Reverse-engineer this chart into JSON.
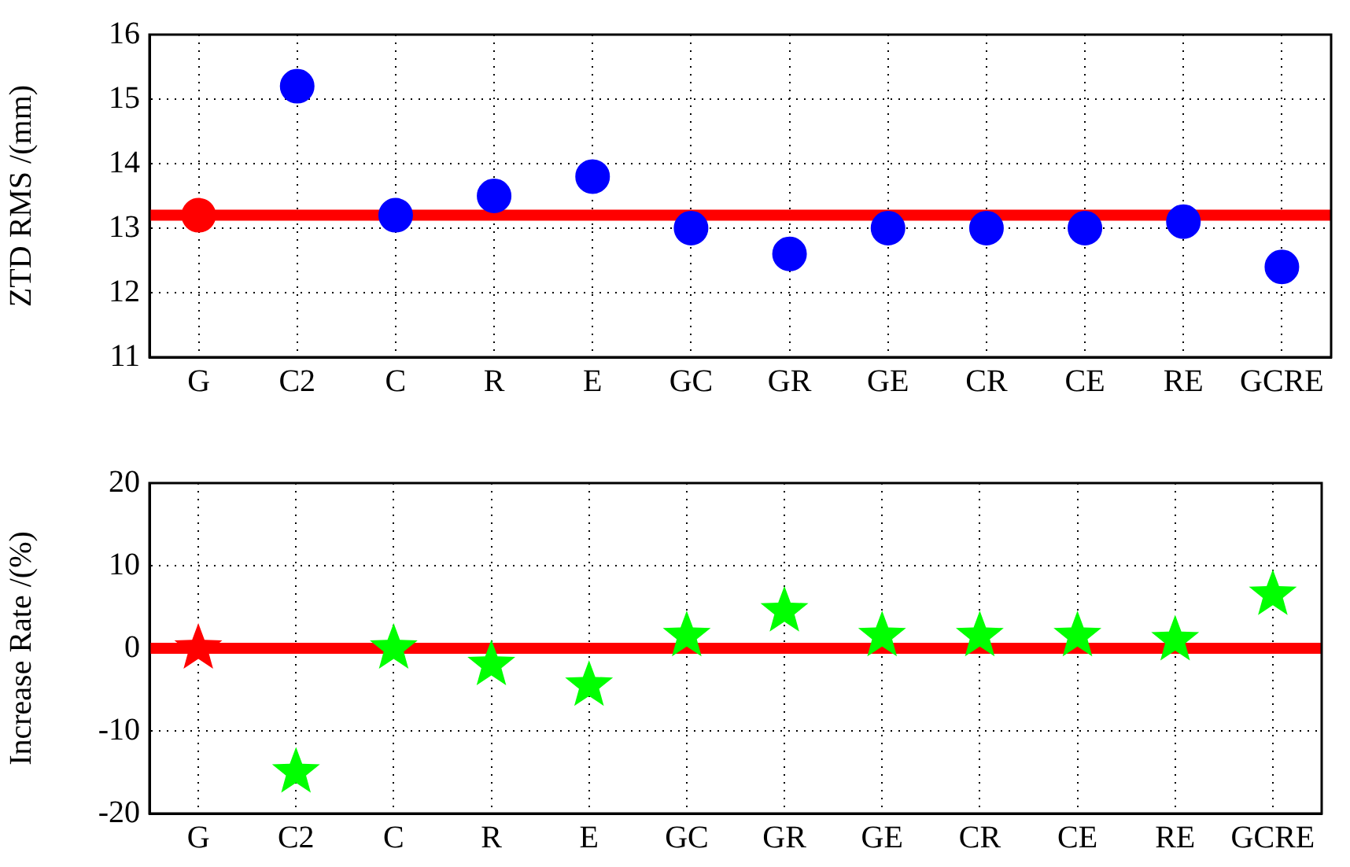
{
  "chart_data": [
    {
      "type": "scatter",
      "categories": [
        "G",
        "C2",
        "C",
        "R",
        "E",
        "GC",
        "GR",
        "GE",
        "CR",
        "CE",
        "RE",
        "GCRE"
      ],
      "values": [
        13.2,
        15.2,
        13.2,
        13.5,
        13.8,
        13.0,
        12.6,
        13.0,
        13.0,
        13.0,
        13.1,
        12.4
      ],
      "colors": [
        "#ff0000",
        "#0000ff",
        "#0000ff",
        "#0000ff",
        "#0000ff",
        "#0000ff",
        "#0000ff",
        "#0000ff",
        "#0000ff",
        "#0000ff",
        "#0000ff",
        "#0000ff"
      ],
      "ylabel": "ZTD RMS /(mm)",
      "ylim": [
        11,
        16
      ],
      "yticks": [
        11,
        12,
        13,
        14,
        15,
        16
      ],
      "grid": true,
      "marker": "circle",
      "ref_lines": [
        {
          "axis": "y",
          "value": 13.2,
          "color": "#ff0000"
        }
      ]
    },
    {
      "type": "scatter",
      "categories": [
        "G",
        "C2",
        "C",
        "R",
        "E",
        "GC",
        "GR",
        "GE",
        "CR",
        "CE",
        "RE",
        "GCRE"
      ],
      "values": [
        0,
        -15,
        0,
        -2,
        -4.5,
        1.5,
        4.5,
        1.5,
        1.5,
        1.5,
        1,
        6.5
      ],
      "colors": [
        "#ff0000",
        "#00ff00",
        "#00ff00",
        "#00ff00",
        "#00ff00",
        "#00ff00",
        "#00ff00",
        "#00ff00",
        "#00ff00",
        "#00ff00",
        "#00ff00",
        "#00ff00"
      ],
      "ylabel": "Increase Rate /(%)",
      "ylim": [
        -20,
        20
      ],
      "yticks": [
        -20,
        -10,
        0,
        10,
        20
      ],
      "grid": true,
      "marker": "star",
      "ref_lines": [
        {
          "axis": "y",
          "value": 0,
          "color": "#ff0000"
        }
      ]
    }
  ]
}
